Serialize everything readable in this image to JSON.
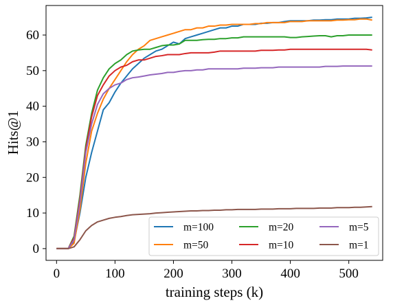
{
  "chart_data": {
    "type": "line",
    "xlabel": "training steps (k)",
    "ylabel": "Hits@1",
    "xlim": [
      -18,
      558
    ],
    "ylim": [
      -3.3,
      68.3
    ],
    "xticks": [
      0,
      100,
      200,
      300,
      400,
      500
    ],
    "yticks": [
      0,
      10,
      20,
      30,
      40,
      50,
      60
    ],
    "grid": false,
    "legend": {
      "position": "lower-right",
      "columns": 3
    },
    "x": [
      0,
      10,
      20,
      30,
      40,
      50,
      60,
      70,
      80,
      90,
      100,
      110,
      120,
      130,
      140,
      150,
      160,
      170,
      180,
      190,
      200,
      210,
      220,
      230,
      240,
      250,
      260,
      270,
      280,
      290,
      300,
      310,
      320,
      330,
      340,
      350,
      360,
      370,
      380,
      390,
      400,
      410,
      420,
      430,
      440,
      450,
      460,
      470,
      480,
      490,
      500,
      510,
      520,
      530,
      540
    ],
    "series": [
      {
        "name": "m=100",
        "color": "#1f77b4",
        "values": [
          0,
          0,
          0,
          2,
          10,
          20,
          27,
          33,
          39,
          41,
          44,
          46.5,
          48.5,
          50.5,
          52,
          53.5,
          54.5,
          55.5,
          56,
          57,
          58,
          57.5,
          59,
          59.5,
          60,
          60.5,
          61,
          61.5,
          62,
          62,
          62.5,
          62.5,
          63,
          63,
          63,
          63.3,
          63.3,
          63.5,
          63.5,
          63.8,
          64,
          64,
          64,
          64,
          64.2,
          64.2,
          64.3,
          64.3,
          64.5,
          64.5,
          64.5,
          64.7,
          64.7,
          64.8,
          65
        ]
      },
      {
        "name": "m=50",
        "color": "#ff7f0e",
        "values": [
          0,
          0,
          0,
          1.5,
          11,
          24,
          33,
          38,
          42,
          45,
          47.5,
          50,
          52.5,
          54.5,
          56,
          57,
          58.5,
          59,
          59.5,
          60,
          60.5,
          61,
          61.5,
          61.5,
          62,
          62,
          62.5,
          62.5,
          62.8,
          62.8,
          63,
          63,
          63,
          63,
          63.2,
          63.2,
          63.5,
          63.5,
          63.5,
          63.5,
          63.8,
          63.8,
          63.8,
          64,
          64,
          64,
          64,
          64,
          64.2,
          64.2,
          64.3,
          64.3,
          64.5,
          64.5,
          64.2
        ]
      },
      {
        "name": "m=20",
        "color": "#2ca02c",
        "values": [
          0,
          0,
          0,
          3.5,
          15,
          29,
          38,
          44.5,
          48,
          50.5,
          52,
          53,
          54.5,
          55.5,
          55.8,
          56,
          56,
          56.5,
          57,
          57.2,
          57.2,
          57.5,
          58.5,
          58.5,
          58.5,
          58.7,
          58.8,
          58.8,
          59,
          59,
          59.2,
          59.2,
          59.5,
          59.5,
          59.5,
          59.5,
          59.5,
          59.5,
          59.5,
          59.5,
          59.3,
          59.3,
          59.5,
          59.6,
          59.7,
          59.8,
          59.8,
          59.5,
          59.8,
          59.8,
          60,
          60,
          60,
          60,
          60
        ]
      },
      {
        "name": "m=10",
        "color": "#d62728",
        "values": [
          0,
          0,
          0,
          3,
          14,
          28,
          37,
          43,
          46,
          48.5,
          50,
          51,
          51.5,
          52.5,
          53,
          53,
          53.5,
          54,
          54.2,
          54.5,
          54.5,
          54.5,
          54.8,
          55,
          55,
          55,
          55,
          55.2,
          55.5,
          55.5,
          55.5,
          55.5,
          55.5,
          55.5,
          55.5,
          55.7,
          55.7,
          55.7,
          55.8,
          55.8,
          56,
          56,
          56,
          56,
          56,
          56,
          56,
          56,
          56,
          56,
          56,
          56,
          56,
          56,
          55.8
        ]
      },
      {
        "name": "m=5",
        "color": "#9467bd",
        "values": [
          0,
          0,
          0,
          2.5,
          13,
          27,
          35,
          40.5,
          43.5,
          45,
          46,
          46.5,
          47.5,
          48,
          48.2,
          48.5,
          48.8,
          49,
          49.2,
          49.5,
          49.5,
          49.8,
          50,
          50,
          50.2,
          50.2,
          50.5,
          50.5,
          50.5,
          50.5,
          50.5,
          50.5,
          50.7,
          50.7,
          50.7,
          50.8,
          50.8,
          50.8,
          51,
          51,
          51,
          51,
          51,
          51,
          51,
          51,
          51.2,
          51.2,
          51.2,
          51.3,
          51.3,
          51.3,
          51.3,
          51.3,
          51.3
        ]
      },
      {
        "name": "m=1",
        "color": "#8c564b",
        "values": [
          0,
          0,
          0,
          0.5,
          2.5,
          5,
          6.5,
          7.5,
          8,
          8.5,
          8.8,
          9,
          9.3,
          9.5,
          9.6,
          9.7,
          9.8,
          10,
          10.1,
          10.2,
          10.3,
          10.4,
          10.5,
          10.6,
          10.6,
          10.7,
          10.7,
          10.8,
          10.8,
          10.9,
          10.9,
          11,
          11,
          11,
          11,
          11.1,
          11.1,
          11.1,
          11.2,
          11.2,
          11.2,
          11.3,
          11.3,
          11.3,
          11.3,
          11.4,
          11.4,
          11.4,
          11.5,
          11.5,
          11.5,
          11.6,
          11.6,
          11.7,
          11.8
        ]
      }
    ]
  }
}
